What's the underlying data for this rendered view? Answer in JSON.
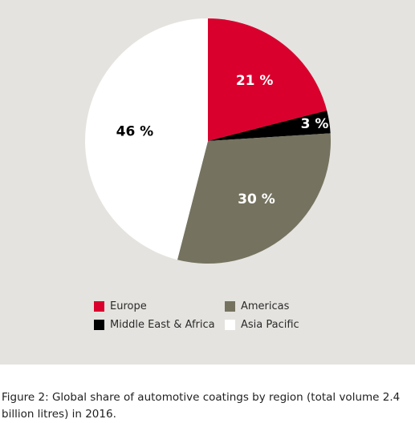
{
  "chart_data": {
    "type": "pie",
    "slices": [
      {
        "name": "Europe",
        "value": 21,
        "label": "21 %",
        "color": "#d9002e",
        "label_color": "#ffffff"
      },
      {
        "name": "Middle East & Africa",
        "value": 3,
        "label": "3 %",
        "color": "#000000",
        "label_color": "#ffffff"
      },
      {
        "name": "Americas",
        "value": 30,
        "label": "30 %",
        "color": "#75735f",
        "label_color": "#ffffff"
      },
      {
        "name": "Asia Pacific",
        "value": 46,
        "label": "46 %",
        "color": "#ffffff",
        "label_color": "#000000"
      }
    ],
    "start_angle_deg": 0,
    "direction": "clockwise",
    "legend_placement": "bottom",
    "legend": [
      {
        "label": "Europe",
        "color": "#d9002e"
      },
      {
        "label": "Americas",
        "color": "#75735f"
      },
      {
        "label": "Middle East & Africa",
        "color": "#000000"
      },
      {
        "label": "Asia Pacific",
        "color": "#ffffff"
      }
    ]
  },
  "caption": "Figure 2: Global share of automotive coatings by region (total volume 2.4 billion litres) in 2016.",
  "colors": {
    "panel_background": "#e4e3df"
  }
}
